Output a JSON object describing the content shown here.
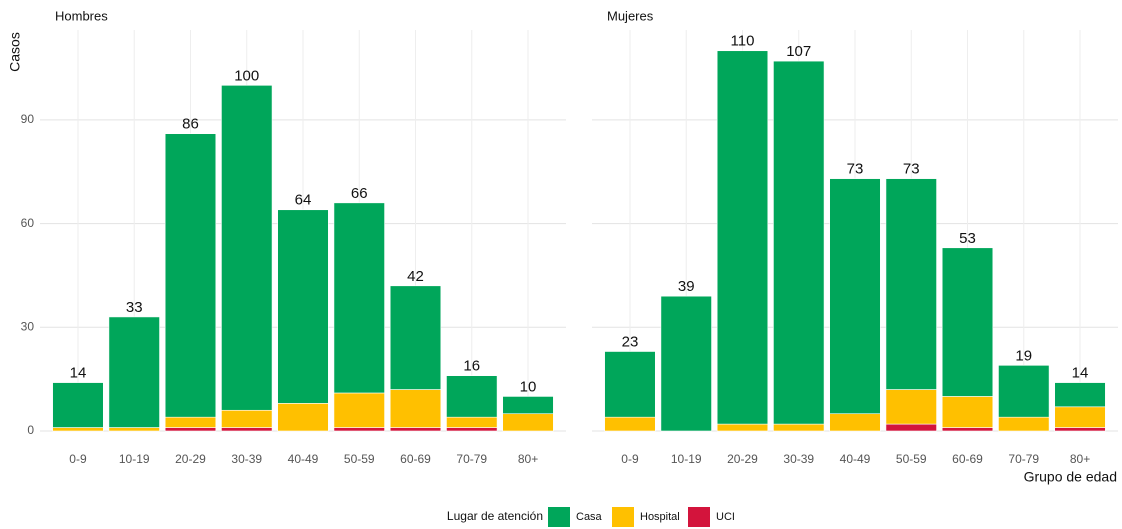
{
  "y_label": "Casos",
  "x_label": "Grupo de edad",
  "legend_title": "Lugar de atención",
  "chart_data": [
    {
      "type": "bar",
      "title": "Hombres",
      "categories": [
        "0-9",
        "10-19",
        "20-29",
        "30-39",
        "40-49",
        "50-59",
        "60-69",
        "70-79",
        "80+"
      ],
      "series": [
        {
          "name": "Casa",
          "color": "#00a65a",
          "values": [
            13,
            32,
            82,
            94,
            56,
            55,
            30,
            12,
            5
          ]
        },
        {
          "name": "Hospital",
          "color": "#ffc000",
          "values": [
            1,
            1,
            3,
            5,
            8,
            10,
            11,
            3,
            5
          ]
        },
        {
          "name": "UCI",
          "color": "#d3143c",
          "values": [
            0,
            0,
            1,
            1,
            0,
            1,
            1,
            1,
            0
          ]
        }
      ],
      "totals": [
        14,
        33,
        86,
        100,
        64,
        66,
        42,
        16,
        10
      ],
      "ylim": [
        0,
        116
      ],
      "yticks": [
        0,
        30,
        60,
        90
      ],
      "grid": true
    },
    {
      "type": "bar",
      "title": "Mujeres",
      "categories": [
        "0-9",
        "10-19",
        "20-29",
        "30-39",
        "40-49",
        "50-59",
        "60-69",
        "70-79",
        "80+"
      ],
      "series": [
        {
          "name": "Casa",
          "color": "#00a65a",
          "values": [
            19,
            39,
            108,
            105,
            68,
            61,
            43,
            15,
            7
          ]
        },
        {
          "name": "Hospital",
          "color": "#ffc000",
          "values": [
            4,
            0,
            2,
            2,
            5,
            10,
            9,
            4,
            6
          ]
        },
        {
          "name": "UCI",
          "color": "#d3143c",
          "values": [
            0,
            0,
            0,
            0,
            0,
            2,
            1,
            0,
            1
          ]
        }
      ],
      "totals": [
        23,
        39,
        110,
        107,
        73,
        73,
        53,
        19,
        14
      ],
      "ylim": [
        0,
        116
      ],
      "yticks": [
        0,
        30,
        60,
        90
      ],
      "grid": true
    }
  ]
}
